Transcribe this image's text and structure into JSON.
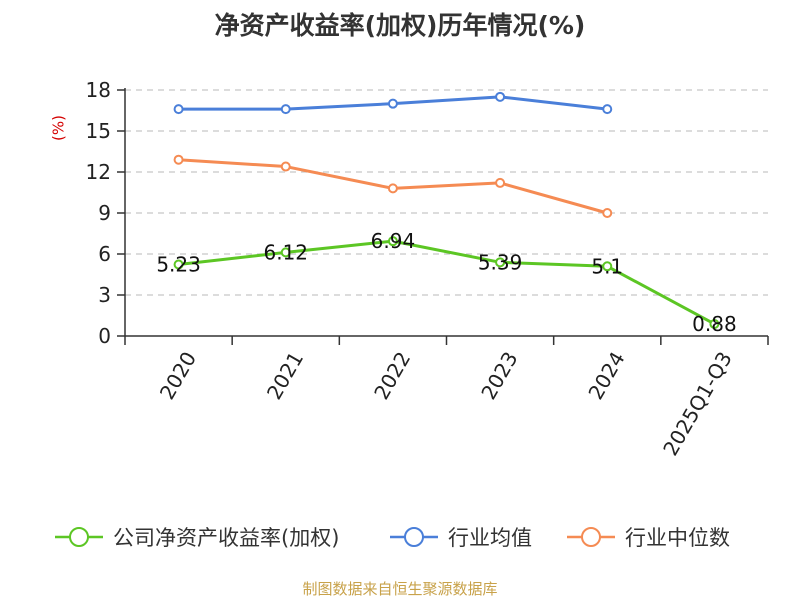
{
  "colors": {
    "company": "#5cc624",
    "industry_avg": "#4a7fd9",
    "industry_median": "#f58b53",
    "grid": "#c8c8c8",
    "axis": "#333333",
    "ylabel": "#d40000",
    "source": "#c8a24a"
  },
  "chart_data": {
    "type": "line",
    "title": "净资产收益率(加权)历年情况(%)",
    "xlabel": "",
    "ylabel": "(%)",
    "ylim": [
      0,
      18
    ],
    "yticks": [
      0,
      3,
      6,
      9,
      12,
      15,
      18
    ],
    "grid": true,
    "legend_position": "bottom",
    "categories": [
      "2020",
      "2021",
      "2022",
      "2023",
      "2024",
      "2025Q1-Q3"
    ],
    "series": [
      {
        "name": "公司净资产收益率(加权)",
        "color": "#5cc624",
        "values": [
          5.23,
          6.12,
          6.94,
          5.39,
          5.1,
          0.88
        ],
        "labels": [
          "5.23",
          "6.12",
          "6.94",
          "5.39",
          "5.1",
          "0.88"
        ]
      },
      {
        "name": "行业均值",
        "color": "#4a7fd9",
        "values": [
          16.6,
          16.6,
          17.0,
          17.5,
          16.6,
          null
        ]
      },
      {
        "name": "行业中位数",
        "color": "#f58b53",
        "values": [
          12.9,
          12.4,
          10.8,
          11.2,
          9.0,
          null
        ]
      }
    ]
  },
  "source_note": "制图数据来自恒生聚源数据库"
}
